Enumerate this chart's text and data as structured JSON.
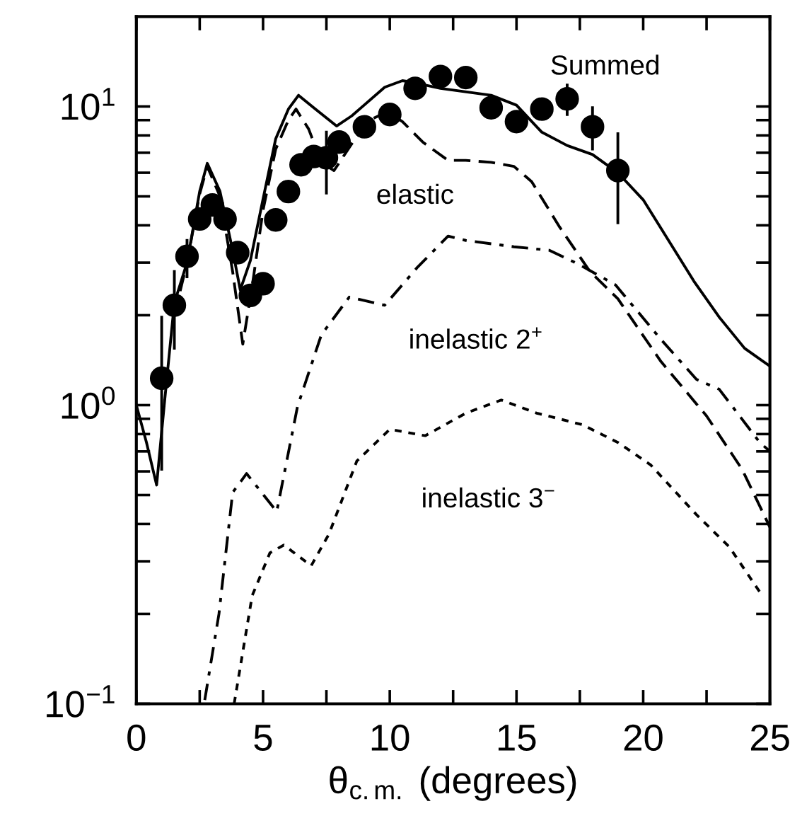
{
  "chart_data": {
    "type": "line",
    "xlabel": "θ$_{c.m.}$ (degrees)",
    "xlim": [
      0,
      25
    ],
    "xticks": [
      0,
      {
        "value": 2.5,
        "label": null
      },
      5,
      {
        "value": 7.5,
        "label": null
      },
      10,
      {
        "value": 12.5,
        "label": null
      },
      15,
      {
        "value": 17.5,
        "label": null
      },
      20,
      {
        "value": 22.5,
        "label": null
      },
      25
    ],
    "ylim": [
      0.1,
      20
    ],
    "yticks": [
      {
        "value": 0.1,
        "label": "10$^{−1}$"
      },
      {
        "value": 0.2,
        "label": null
      },
      {
        "value": 0.3,
        "label": null
      },
      {
        "value": 0.4,
        "label": null
      },
      {
        "value": 0.5,
        "label": null
      },
      {
        "value": 0.6,
        "label": null
      },
      {
        "value": 0.7,
        "label": null
      },
      {
        "value": 0.8,
        "label": null
      },
      {
        "value": 0.9,
        "label": null
      },
      {
        "value": 1,
        "label": "10$^{0}$"
      },
      {
        "value": 2,
        "label": null
      },
      {
        "value": 3,
        "label": null
      },
      {
        "value": 4,
        "label": null
      },
      {
        "value": 5,
        "label": null
      },
      {
        "value": 6,
        "label": null
      },
      {
        "value": 7,
        "label": null
      },
      {
        "value": 8,
        "label": null
      },
      {
        "value": 9,
        "label": null
      },
      {
        "value": 10,
        "label": "10$^{1}$"
      }
    ],
    "log": true,
    "grid": false,
    "legend": false,
    "series": [
      {
        "type": "scatter",
        "marker": "circle",
        "color": "#000000",
        "x": [
          1,
          1.5,
          2,
          2.5,
          3,
          3.5,
          4,
          4.5,
          5,
          5.5,
          6,
          6.5,
          7,
          7.5,
          8,
          9,
          10,
          11,
          12,
          13,
          14,
          15,
          16,
          17,
          18,
          19
        ],
        "values": [
          1.23,
          2.16,
          3.15,
          4.2,
          4.68,
          4.2,
          3.24,
          2.33,
          2.55,
          4.17,
          5.19,
          6.38,
          6.8,
          6.73,
          7.6,
          8.55,
          9.4,
          11.5,
          12.6,
          12.5,
          9.9,
          8.9,
          9.8,
          10.6,
          8.55,
          6.1
        ],
        "errors": [
          [
            0.61,
            1.97
          ],
          [
            1.55,
            2.8
          ],
          [
            2.69,
            3.56
          ],
          null,
          null,
          null,
          null,
          null,
          null,
          null,
          null,
          null,
          null,
          [
            5.13,
            8.2
          ],
          null,
          null,
          null,
          null,
          null,
          null,
          null,
          null,
          null,
          [
            9.4,
            11.8
          ],
          [
            7.2,
            9.9
          ],
          [
            4.08,
            8.1
          ]
        ]
      },
      {
        "line_style": "solid",
        "color": "#000000",
        "x": [
          0,
          0.4,
          0.8,
          1.1,
          1.5,
          2.0,
          2.5,
          2.8,
          3.3,
          3.8,
          4.1,
          4.5,
          5.0,
          5.5,
          6.0,
          6.4,
          7.0,
          7.9,
          8.5,
          9.8,
          10.5,
          11,
          12,
          14,
          15,
          16,
          17,
          18,
          19,
          20,
          21,
          22,
          23,
          24,
          25
        ],
        "values": [
          1.0,
          0.75,
          0.54,
          1.0,
          2.2,
          3.0,
          5.2,
          6.45,
          5.2,
          3.3,
          2.43,
          3.05,
          4.9,
          7.8,
          9.8,
          10.9,
          9.9,
          8.6,
          9.3,
          11.6,
          12.2,
          12,
          11.5,
          10.9,
          10.1,
          8.2,
          7.4,
          6.9,
          6.0,
          4.87,
          3.56,
          2.6,
          1.97,
          1.55,
          1.35
        ]
      },
      {
        "line_style": "dashed",
        "color": "#000000",
        "x": [
          1.5,
          2.0,
          2.5,
          2.8,
          3.3,
          3.8,
          4.2,
          4.6,
          5.0,
          5.5,
          6.0,
          6.3,
          6.8,
          7.3,
          7.8,
          8.5,
          9.2,
          9.9,
          10.5,
          11.3,
          12.3,
          13,
          14,
          14.9,
          15.6,
          16.7,
          17.9,
          19,
          20.7,
          22.5,
          23.9,
          25
        ],
        "values": [
          2.0,
          3.0,
          5.1,
          6.3,
          5.0,
          2.8,
          1.6,
          2.6,
          4.5,
          7.2,
          9.0,
          9.8,
          8.4,
          6.5,
          6.1,
          7.5,
          9.0,
          9.6,
          8.9,
          7.6,
          6.6,
          6.6,
          6.5,
          6.3,
          5.6,
          3.95,
          2.8,
          2.27,
          1.4,
          0.92,
          0.61,
          0.39
        ]
      },
      {
        "line_style": "dashdot",
        "color": "#000000",
        "x": [
          2.7,
          3.26,
          3.8,
          4.35,
          5.54,
          6.36,
          7.3,
          8.4,
          9.8,
          11.1,
          12.3,
          13.0,
          14.9,
          16.3,
          17.4,
          18.9,
          20.7,
          22.1,
          23.0,
          24.6,
          25
        ],
        "values": [
          0.103,
          0.2,
          0.51,
          0.59,
          0.44,
          0.99,
          1.72,
          2.3,
          2.16,
          2.9,
          3.68,
          3.56,
          3.39,
          3.3,
          2.98,
          2.53,
          1.66,
          1.22,
          1.13,
          0.75,
          0.7
        ]
      },
      {
        "line_style": "dotted",
        "color": "#000000",
        "x": [
          3.86,
          4.57,
          5.27,
          5.82,
          6.9,
          7.6,
          8.7,
          10.0,
          11.4,
          13.0,
          14.4,
          15.8,
          17.6,
          19.0,
          20.3,
          22.1,
          23.4,
          24.7
        ],
        "values": [
          0.1,
          0.23,
          0.32,
          0.34,
          0.29,
          0.37,
          0.65,
          0.83,
          0.79,
          0.94,
          1.04,
          0.94,
          0.86,
          0.75,
          0.63,
          0.43,
          0.335,
          0.23
        ]
      }
    ],
    "annotations": [
      "Summed",
      "elastic",
      "inelastic 2$^{+}$",
      "inelastic 3$^{−}$"
    ]
  }
}
